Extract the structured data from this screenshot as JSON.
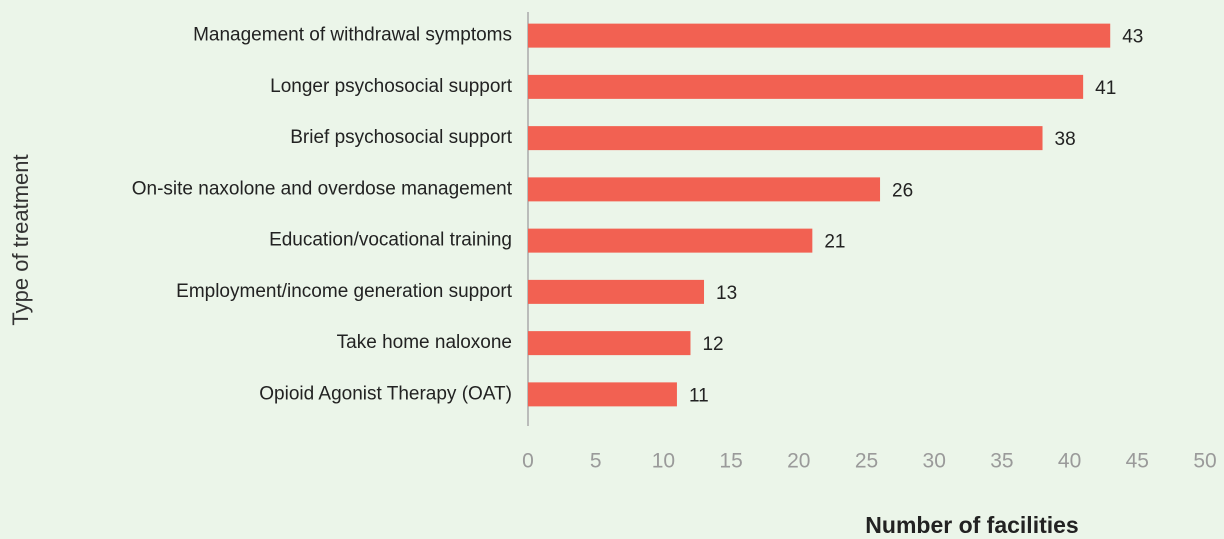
{
  "chart_data": {
    "type": "bar",
    "orientation": "horizontal",
    "x_label": "Number of facilities",
    "y_label": "Type of treatment",
    "categories": [
      "Management of withdrawal symptoms",
      "Longer psychosocial support",
      "Brief psychosocial support",
      "On-site naxolone and overdose management",
      "Education/vocational training",
      "Employment/income generation support",
      "Take home naloxone",
      "Opioid Agonist Therapy (OAT)"
    ],
    "values": [
      43,
      41,
      38,
      26,
      21,
      13,
      12,
      11
    ],
    "color": "#f26152",
    "xlim": [
      0,
      50
    ],
    "xticks": [
      0,
      5,
      10,
      15,
      20,
      25,
      30,
      35,
      40,
      45,
      50
    ],
    "grid": false
  }
}
